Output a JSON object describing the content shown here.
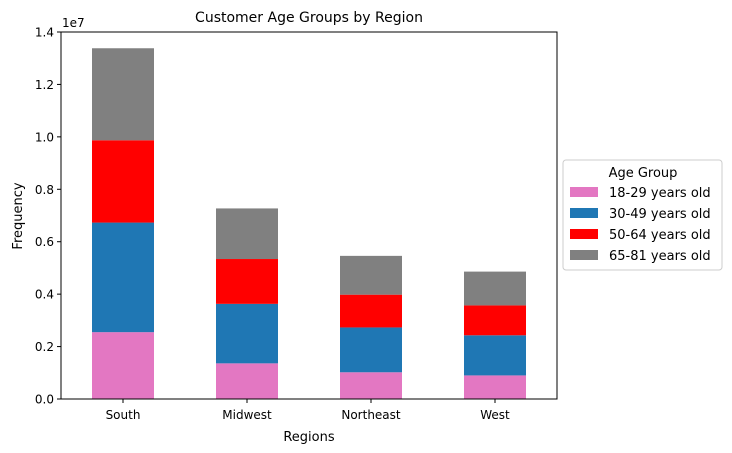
{
  "chart_data": {
    "type": "bar",
    "stacked": true,
    "title": "Customer Age Groups by Region",
    "xlabel": "Regions",
    "ylabel": "Frequency",
    "y_offset_label": "1e7",
    "categories": [
      "South",
      "Midwest",
      "Northeast",
      "West"
    ],
    "ylim": [
      0,
      14000000
    ],
    "yticks": [
      0,
      2000000,
      4000000,
      6000000,
      8000000,
      10000000,
      12000000,
      14000000
    ],
    "ytick_labels": [
      "0.0",
      "0.2",
      "0.4",
      "0.6",
      "0.8",
      "1.0",
      "1.2",
      "1.4"
    ],
    "grid": false,
    "legend": {
      "title": "Age Group",
      "placement": "outside-right"
    },
    "series": [
      {
        "name": "18-29 years old",
        "color": "#e377c2",
        "values": [
          2550000,
          1360000,
          1020000,
          900000
        ]
      },
      {
        "name": "30-49 years old",
        "color": "#1f77b4",
        "values": [
          4180000,
          2270000,
          1710000,
          1530000
        ]
      },
      {
        "name": "50-64 years old",
        "color": "#ff0000",
        "values": [
          3140000,
          1710000,
          1250000,
          1140000
        ]
      },
      {
        "name": "65-81 years old",
        "color": "#808080",
        "values": [
          3510000,
          1930000,
          1480000,
          1290000
        ]
      }
    ]
  }
}
